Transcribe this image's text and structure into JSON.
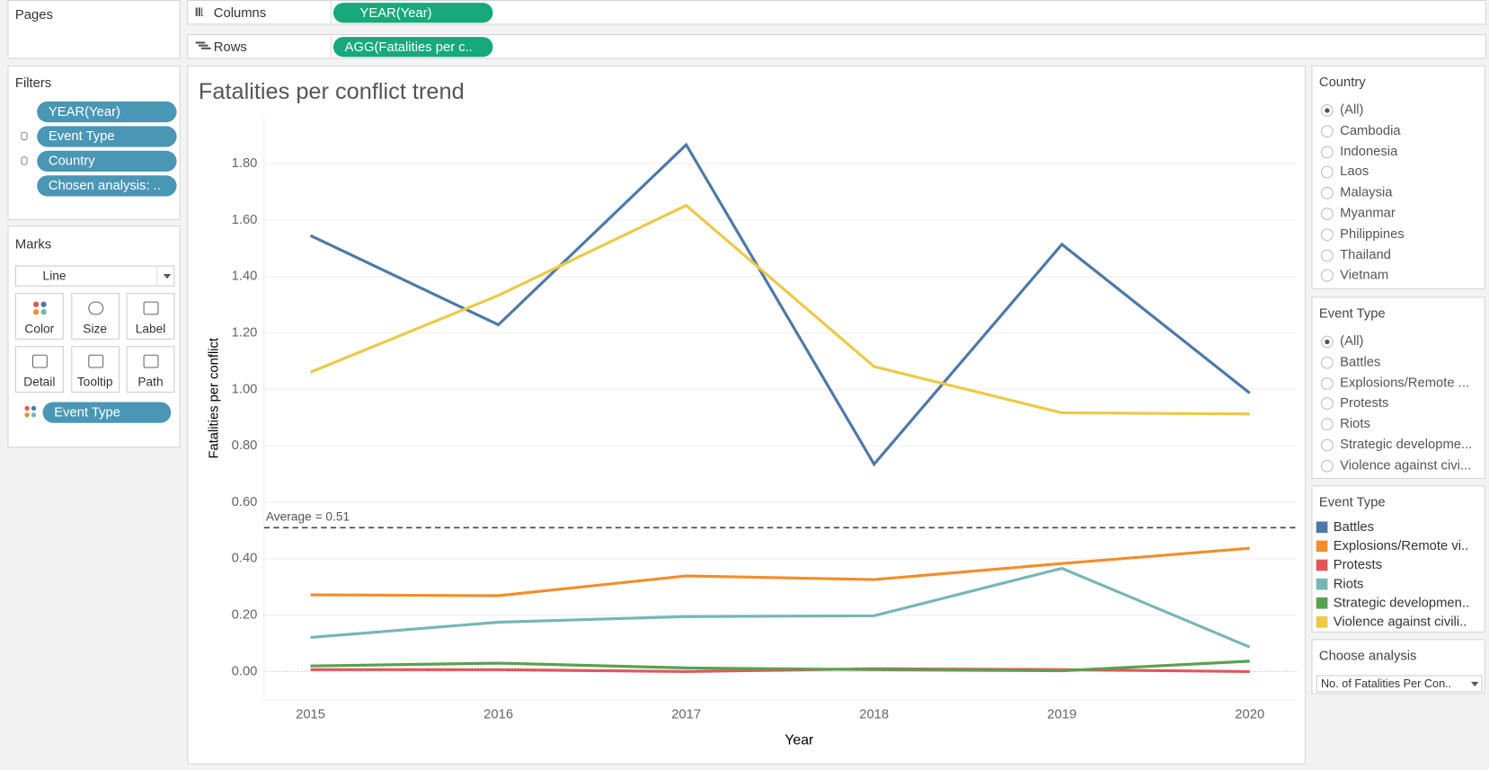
{
  "shelves": {
    "pages": "Pages",
    "columns": {
      "label": "Columns",
      "pill": "YEAR(Year)"
    },
    "rows": {
      "label": "Rows",
      "pill": "AGG(Fatalities per c.."
    }
  },
  "filters": {
    "title": "Filters",
    "items": [
      "YEAR(Year)",
      "Event Type",
      "Country",
      "Chosen analysis: .."
    ]
  },
  "marks": {
    "title": "Marks",
    "mark_type": "Line",
    "buttons": [
      "Color",
      "Size",
      "Label",
      "Detail",
      "Tooltip",
      "Path"
    ],
    "pill": "Event Type"
  },
  "country_filter": {
    "title": "Country",
    "options": [
      "(All)",
      "Cambodia",
      "Indonesia",
      "Laos",
      "Malaysia",
      "Myanmar",
      "Philippines",
      "Thailand",
      "Vietnam"
    ]
  },
  "event_filter": {
    "title": "Event Type",
    "options": [
      "(All)",
      "Battles",
      "Explosions/Remote ...",
      "Protests",
      "Riots",
      "Strategic developme...",
      "Violence against civi..."
    ]
  },
  "choose_analysis": {
    "title": "Choose analysis",
    "value": "No. of Fatalities Per Con.."
  },
  "chart_data": {
    "type": "line",
    "title": "Fatalities per conflict trend",
    "x_label": "Year",
    "y_label": "Fatalities per conflict",
    "legend_title": "Event Type",
    "categories": [
      "2015",
      "2016",
      "2017",
      "2018",
      "2019",
      "2020"
    ],
    "series": [
      {
        "name": "Battles",
        "color": "#4e79a7",
        "values": [
          1.545,
          1.229,
          1.867,
          0.735,
          1.514,
          0.987
        ]
      },
      {
        "name": "Explosions/Remote vi..",
        "color": "#f28e2b",
        "values": [
          0.272,
          0.269,
          0.339,
          0.326,
          0.383,
          0.437
        ]
      },
      {
        "name": "Protests",
        "color": "#e15759",
        "values": [
          0.007,
          0.007,
          0.0,
          0.01,
          0.007,
          0.0
        ]
      },
      {
        "name": "Riots",
        "color": "#76b7b2",
        "values": [
          0.121,
          0.175,
          0.195,
          0.198,
          0.366,
          0.087
        ]
      },
      {
        "name": "Strategic developmen..",
        "color": "#59a14f",
        "values": [
          0.02,
          0.03,
          0.013,
          0.007,
          0.003,
          0.037
        ]
      },
      {
        "name": "Violence against civili..",
        "color": "#edc948",
        "values": [
          1.061,
          1.333,
          1.652,
          1.081,
          0.917,
          0.913
        ]
      }
    ],
    "ylim": [
      -0.1,
      1.97
    ],
    "yticks": [
      {
        "value": 0,
        "label": "0.00"
      },
      {
        "value": 0.2,
        "label": "0.20"
      },
      {
        "value": 0.4,
        "label": "0.40"
      },
      {
        "value": 0.6,
        "label": "0.60"
      },
      {
        "value": 0.8,
        "label": "0.80"
      },
      {
        "value": 1.0,
        "label": "1.00"
      },
      {
        "value": 1.2,
        "label": "1.20"
      },
      {
        "value": 1.4,
        "label": "1.40"
      },
      {
        "value": 1.6,
        "label": "1.60"
      },
      {
        "value": 1.8,
        "label": "1.80"
      }
    ],
    "grid": true,
    "reference_line": {
      "label": "Average = 0.51",
      "value": 0.51
    }
  }
}
